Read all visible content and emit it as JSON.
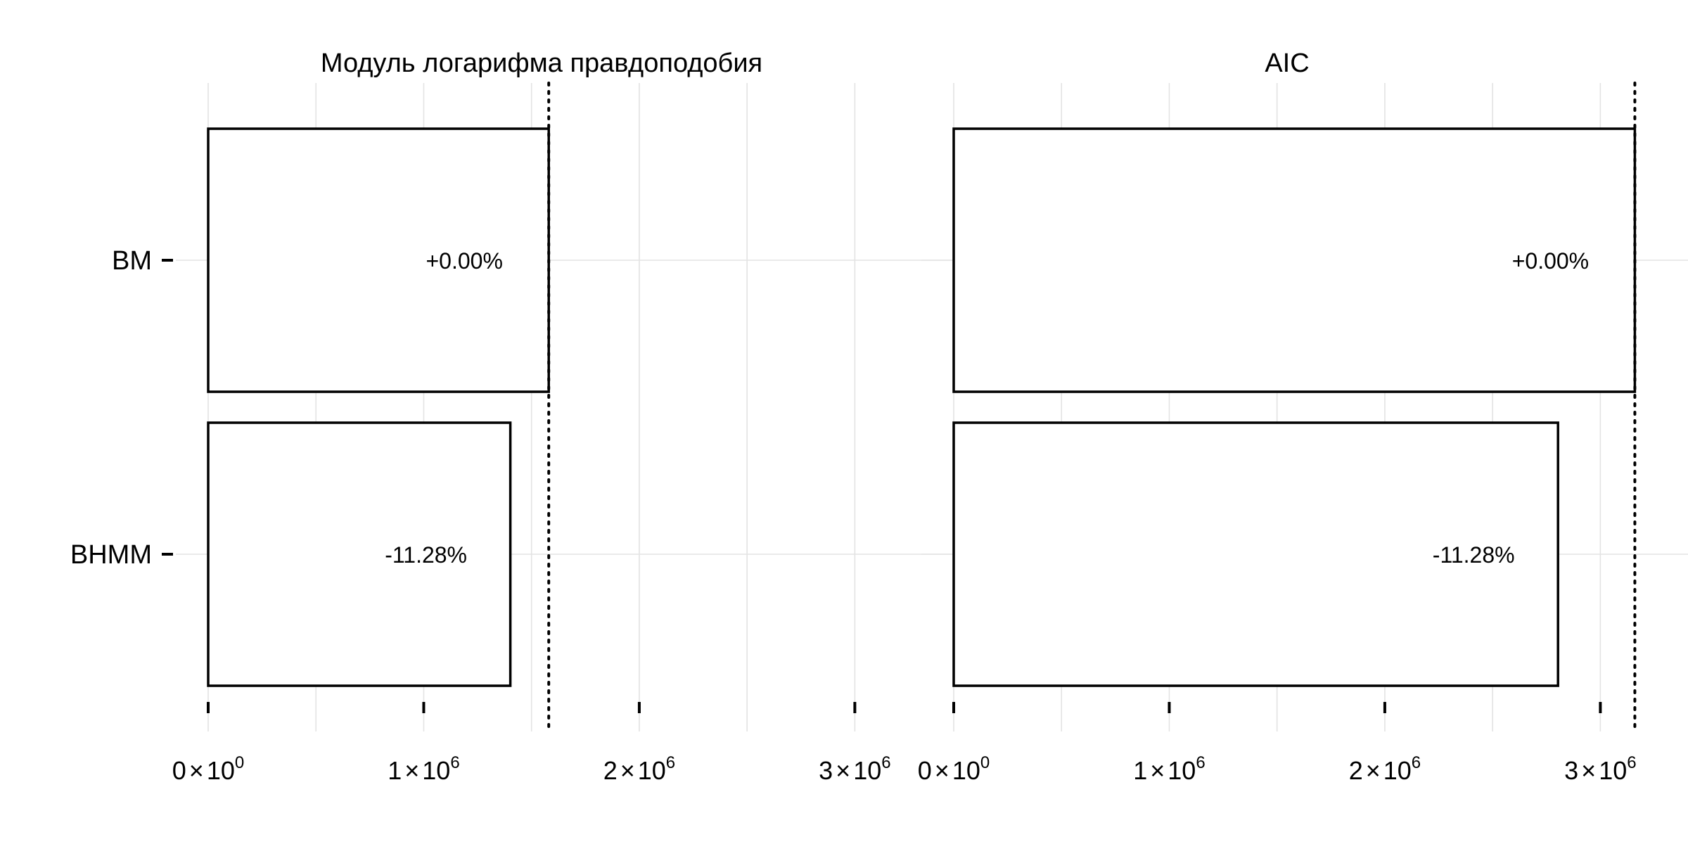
{
  "chart_data": [
    {
      "type": "bar",
      "orientation": "horizontal",
      "title": "Модуль логарифма правдоподобия",
      "categories": [
        "BM",
        "BHMM"
      ],
      "values": [
        1580000,
        1401800
      ],
      "data_labels": [
        "+0.00%",
        "-11.28%"
      ],
      "reference_line": 1580000,
      "xlim": [
        0,
        3250000
      ],
      "xticks": [
        0,
        1000000,
        2000000,
        3000000
      ],
      "xtick_labels": [
        {
          "mantissa": "0",
          "times": "×",
          "base": "10",
          "exp": "0"
        },
        {
          "mantissa": "1",
          "times": "×",
          "base": "10",
          "exp": "6"
        },
        {
          "mantissa": "2",
          "times": "×",
          "base": "10",
          "exp": "6"
        },
        {
          "mantissa": "3",
          "times": "×",
          "base": "10",
          "exp": "6"
        }
      ],
      "xlabel": "",
      "ylabel": ""
    },
    {
      "type": "bar",
      "orientation": "horizontal",
      "title": "AIC",
      "categories": [
        "BM",
        "BHMM"
      ],
      "values": [
        3160000,
        2803600
      ],
      "data_labels": [
        "+0.00%",
        "-11.28%"
      ],
      "reference_line": 3160000,
      "xlim": [
        0,
        3250000
      ],
      "xticks": [
        0,
        1000000,
        2000000,
        3000000
      ],
      "xtick_labels": [
        {
          "mantissa": "0",
          "times": "×",
          "base": "10",
          "exp": "0"
        },
        {
          "mantissa": "1",
          "times": "×",
          "base": "10",
          "exp": "6"
        },
        {
          "mantissa": "2",
          "times": "×",
          "base": "10",
          "exp": "6"
        },
        {
          "mantissa": "3",
          "times": "×",
          "base": "10",
          "exp": "6"
        }
      ],
      "xlabel": "",
      "ylabel": ""
    }
  ]
}
